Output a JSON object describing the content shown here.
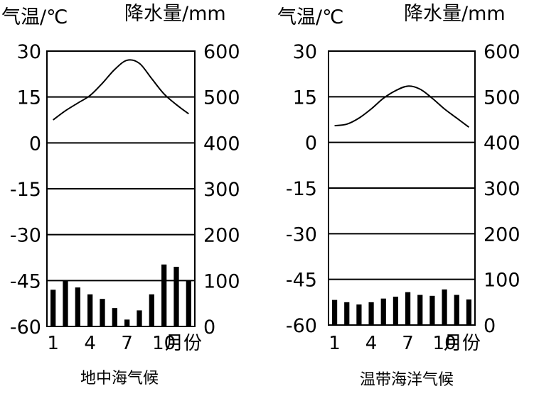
{
  "chart_data": [
    {
      "type": "bar+line",
      "title": "地中海气候",
      "left_axis_label": "气温/℃",
      "right_axis_label": "降水量/mm",
      "x_axis_label": "月份",
      "x_ticks": [
        "1",
        "4",
        "7",
        "10"
      ],
      "months": [
        1,
        2,
        3,
        4,
        5,
        6,
        7,
        8,
        9,
        10,
        11,
        12
      ],
      "left_ticks": [
        "30",
        "15",
        "0",
        "-15",
        "-30",
        "-45",
        "-60"
      ],
      "right_ticks": [
        "600",
        "500",
        "400",
        "300",
        "200",
        "100",
        "0"
      ],
      "ylim_temperature": [
        -60,
        30
      ],
      "ylim_precipitation": [
        0,
        600
      ],
      "grid": true,
      "series": [
        {
          "name": "气温",
          "kind": "line",
          "values": [
            7.5,
            10.5,
            13,
            15.5,
            19.5,
            24,
            27,
            26,
            21,
            16,
            12.5,
            9.5
          ]
        },
        {
          "name": "降水量",
          "kind": "bar",
          "values": [
            80,
            100,
            85,
            70,
            60,
            40,
            15,
            35,
            70,
            135,
            130,
            100
          ]
        }
      ]
    },
    {
      "type": "bar+line",
      "title": "温带海洋气候",
      "left_axis_label": "气温/℃",
      "right_axis_label": "降水量/mm",
      "x_axis_label": "月份",
      "x_ticks": [
        "1",
        "4",
        "7",
        "10"
      ],
      "months": [
        1,
        2,
        3,
        4,
        5,
        6,
        7,
        8,
        9,
        10,
        11,
        12
      ],
      "left_ticks": [
        "30",
        "15",
        "0",
        "-15",
        "-30",
        "-45",
        "-60"
      ],
      "right_ticks": [
        "600",
        "500",
        "400",
        "300",
        "200",
        "100",
        "0"
      ],
      "ylim_temperature": [
        -60,
        30
      ],
      "ylim_precipitation": [
        0,
        600
      ],
      "grid": true,
      "series": [
        {
          "name": "气温",
          "kind": "line",
          "values": [
            5.5,
            6,
            8,
            11,
            14.5,
            17,
            18.5,
            17.5,
            14.5,
            11,
            8,
            5
          ]
        },
        {
          "name": "降水量",
          "kind": "bar",
          "values": [
            55,
            50,
            45,
            50,
            58,
            62,
            72,
            66,
            64,
            78,
            66,
            56
          ]
        }
      ]
    }
  ]
}
